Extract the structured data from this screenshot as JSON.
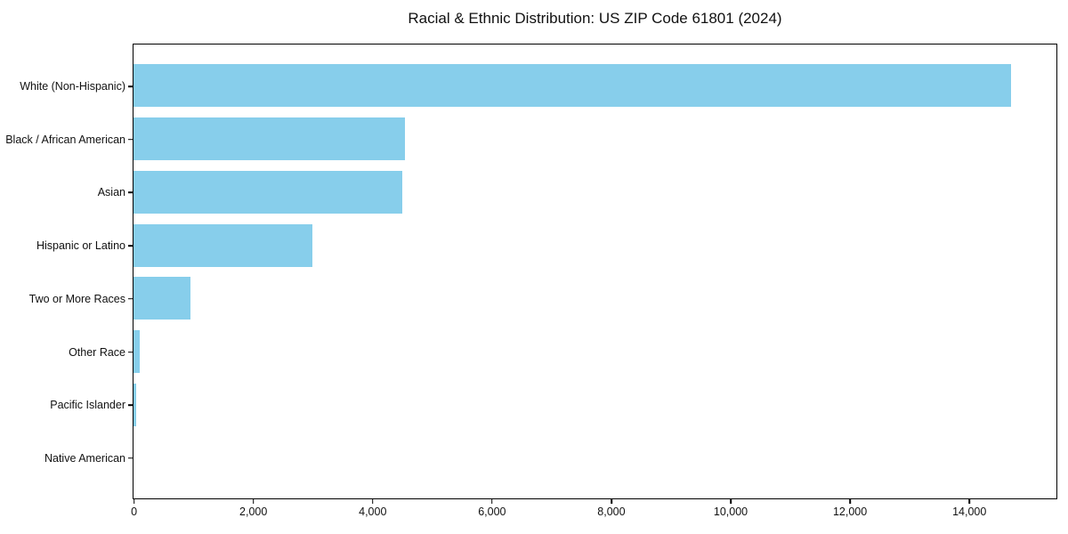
{
  "chart_data": {
    "type": "bar",
    "orientation": "horizontal",
    "title": "Racial & Ethnic Distribution: US ZIP Code 61801 (2024)",
    "categories": [
      "White (Non-Hispanic)",
      "Black / African American",
      "Asian",
      "Hispanic or Latino",
      "Two or More Races",
      "Other Race",
      "Pacific Islander",
      "Native American"
    ],
    "values": [
      14700,
      4550,
      4500,
      3000,
      950,
      100,
      40,
      0
    ],
    "xlabel": "",
    "ylabel": "",
    "xlim": [
      0,
      15450
    ],
    "xticks": [
      0,
      2000,
      4000,
      6000,
      8000,
      10000,
      12000,
      14000
    ],
    "xtick_labels": [
      "0",
      "2,000",
      "4,000",
      "6,000",
      "8,000",
      "10,000",
      "12,000",
      "14,000"
    ],
    "bar_color": "#87CEEB",
    "axis_color": "#000000",
    "background_color": "#ffffff",
    "grid": false,
    "legend": null
  }
}
